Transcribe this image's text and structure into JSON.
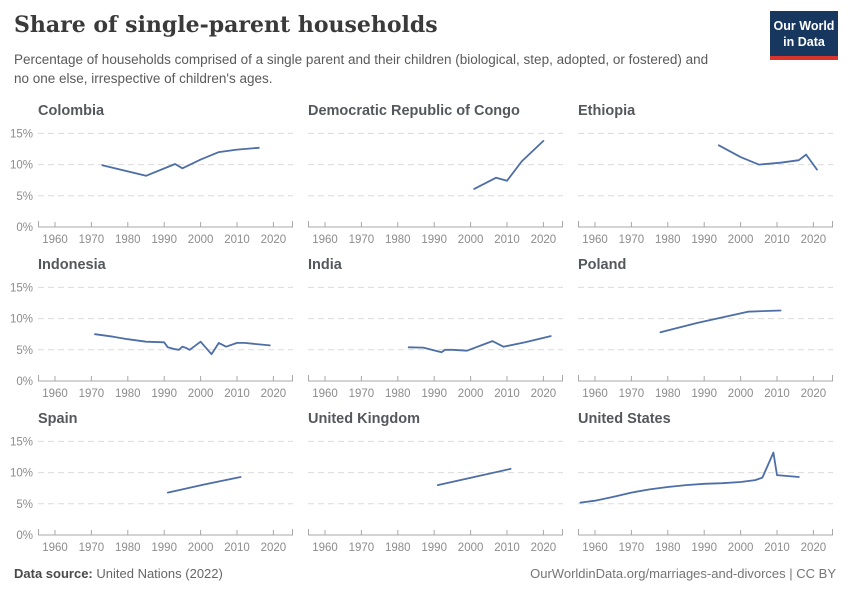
{
  "header": {
    "title": "Share of single-parent households",
    "subtitle": "Percentage of households comprised of a single parent and their children (biological, step, adopted, or fostered) and no one else, irrespective of children's ages.",
    "logo": {
      "line1": "Our World",
      "line2": "in Data",
      "bg_color": "#18375f",
      "accent_color": "#d7342c"
    }
  },
  "footer": {
    "source_label": "Data source:",
    "source_value": "United Nations (2022)",
    "right_text": "OurWorldinData.org/marriages-and-divorces | CC BY"
  },
  "colors": {
    "line": "#4d6ea6",
    "grid": "#dcdcdc",
    "axis": "#a8a8a8",
    "tick_label": "#8c8c8c",
    "chart_title": "#54585c"
  },
  "axes": {
    "x_ticks": [
      1960,
      1970,
      1980,
      1990,
      2000,
      2010,
      2020
    ],
    "y_ticks": [
      0,
      5,
      10,
      15
    ],
    "y_tick_labels": [
      "0%",
      "5%",
      "10%",
      "15%"
    ],
    "y_unit": "%",
    "ylim": [
      0,
      15.8
    ],
    "grid": "dashed horizontal"
  },
  "chart_data": [
    {
      "type": "line",
      "title": "Colombia",
      "x": [
        1973,
        1985,
        1993,
        1995,
        2000,
        2005,
        2010,
        2016
      ],
      "y": [
        9.9,
        8.2,
        10.1,
        9.4,
        10.8,
        12.0,
        12.4,
        12.7
      ]
    },
    {
      "type": "line",
      "title": "Democratic Republic of Congo",
      "x": [
        2001,
        2007,
        2010,
        2014,
        2020
      ],
      "y": [
        6.1,
        7.9,
        7.4,
        10.5,
        13.8
      ]
    },
    {
      "type": "line",
      "title": "Ethiopia",
      "x": [
        1994,
        2000,
        2005,
        2011,
        2016,
        2018,
        2021
      ],
      "y": [
        13.1,
        11.2,
        10.0,
        10.3,
        10.7,
        11.6,
        9.2
      ]
    },
    {
      "type": "line",
      "title": "Indonesia",
      "x": [
        1971,
        1976,
        1980,
        1985,
        1990,
        1991,
        1993,
        1994,
        1995,
        1996,
        1997,
        2000,
        2003,
        2005,
        2007,
        2010,
        2012,
        2019
      ],
      "y": [
        7.5,
        7.1,
        6.7,
        6.3,
        6.2,
        5.4,
        5.1,
        5.0,
        5.5,
        5.3,
        5.0,
        6.3,
        4.3,
        6.1,
        5.5,
        6.1,
        6.1,
        5.7
      ]
    },
    {
      "type": "line",
      "title": "India",
      "x": [
        1983,
        1987,
        1992,
        1993,
        1995,
        1999,
        2006,
        2009,
        2015,
        2022
      ],
      "y": [
        5.4,
        5.35,
        4.6,
        5.0,
        5.0,
        4.85,
        6.4,
        5.5,
        6.2,
        7.2
      ]
    },
    {
      "type": "line",
      "title": "Poland",
      "x": [
        1978,
        1988,
        1995,
        2002,
        2006,
        2011
      ],
      "y": [
        7.8,
        9.3,
        10.2,
        11.1,
        11.2,
        11.3
      ]
    },
    {
      "type": "line",
      "title": "Spain",
      "x": [
        1991,
        2001,
        2011
      ],
      "y": [
        6.8,
        8.1,
        9.3
      ]
    },
    {
      "type": "line",
      "title": "United Kingdom",
      "x": [
        1991,
        2001,
        2011
      ],
      "y": [
        8.0,
        9.3,
        10.6
      ]
    },
    {
      "type": "line",
      "title": "United States",
      "x": [
        1956,
        1960,
        1965,
        1970,
        1975,
        1980,
        1985,
        1990,
        1995,
        2000,
        2004,
        2006,
        2009,
        2010,
        2016
      ],
      "y": [
        5.2,
        5.5,
        6.1,
        6.8,
        7.3,
        7.7,
        8.0,
        8.2,
        8.3,
        8.5,
        8.8,
        9.2,
        13.2,
        9.6,
        9.3
      ]
    }
  ]
}
